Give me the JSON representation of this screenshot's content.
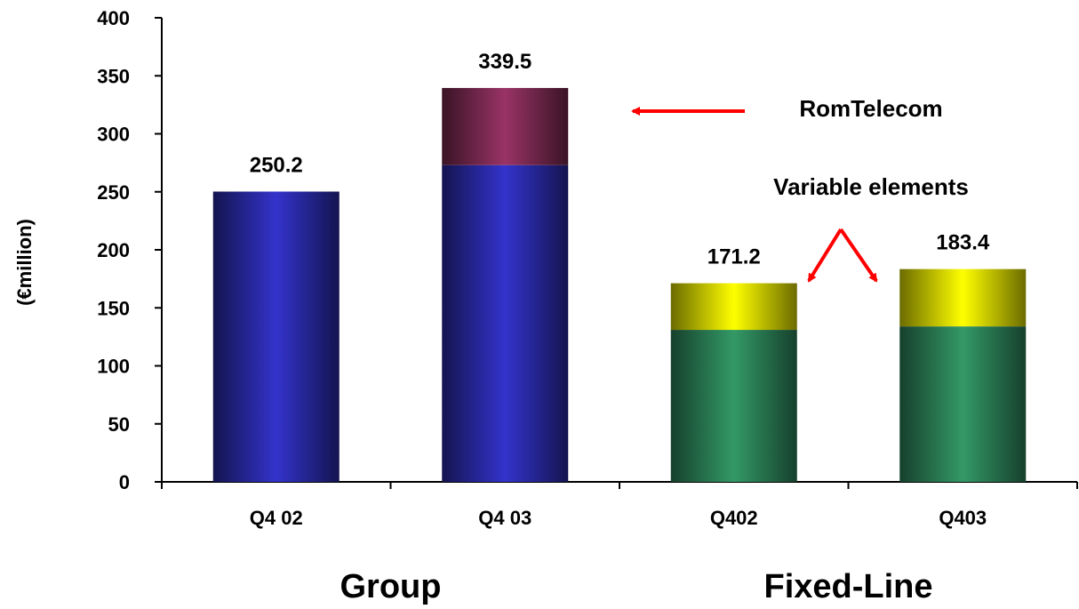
{
  "chart_data": {
    "type": "bar",
    "stacked": true,
    "ylabel": "(€million)",
    "ylim": [
      0,
      400
    ],
    "yticks": [
      0,
      50,
      100,
      150,
      200,
      250,
      300,
      350,
      400
    ],
    "grid": false,
    "categories": [
      "Q4 02",
      "Q4 03",
      "Q402",
      "Q403"
    ],
    "group_labels": [
      {
        "label": "Group",
        "categories": [
          "Q4 02",
          "Q4 03"
        ]
      },
      {
        "label": "Fixed-Line",
        "categories": [
          "Q402",
          "Q403"
        ]
      }
    ],
    "totals": [
      250.2,
      339.5,
      171.2,
      183.4
    ],
    "total_labels": [
      "250.2",
      "339.5",
      "171.2",
      "183.4"
    ],
    "series": [
      {
        "values": [
          250.2,
          273,
          0,
          0
        ],
        "color": "#3333cc"
      },
      {
        "name": "RomTelecom",
        "values": [
          0,
          66.5,
          0,
          0
        ],
        "color": "#993366"
      },
      {
        "values": [
          0,
          0,
          131,
          134
        ],
        "color": "#339966"
      },
      {
        "name": "Variable elements",
        "values": [
          0,
          0,
          40.2,
          49.4
        ],
        "color": "#ffff00"
      }
    ],
    "annotations": [
      {
        "text": "RomTelecom",
        "color": "#ff0000"
      },
      {
        "text": "Variable elements",
        "color": "#ff0000"
      }
    ]
  }
}
